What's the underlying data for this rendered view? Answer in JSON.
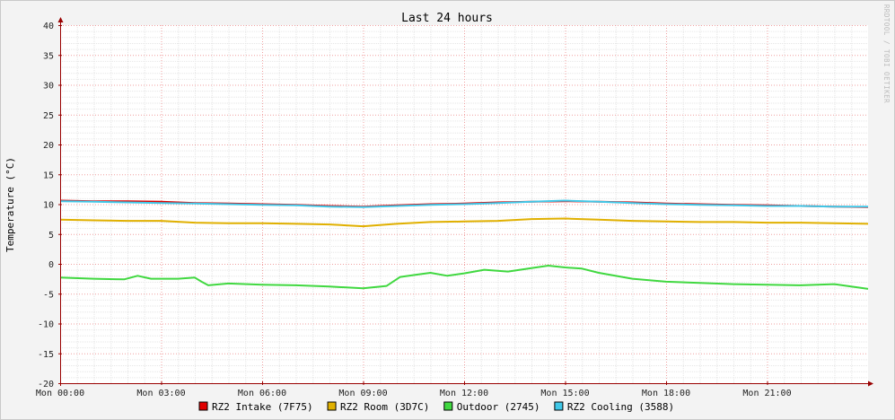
{
  "chart_data": {
    "type": "line",
    "title": "Last 24 hours",
    "ylabel": "Temperature (°C)",
    "xlabel": "",
    "watermark": "RRDTOOL / TOBI OETIKER",
    "ylim": [
      -20,
      40
    ],
    "yticks": [
      40,
      35,
      30,
      25,
      20,
      15,
      10,
      5,
      0,
      -5,
      -10,
      -15,
      -20
    ],
    "ytick_labels": [
      "40",
      "35",
      "30",
      "25",
      "20",
      "15",
      "10",
      "5",
      "0",
      "-5",
      "-10",
      "-15",
      "-20"
    ],
    "xlim_hours": [
      0,
      24
    ],
    "xticks_hours": [
      0,
      3,
      6,
      9,
      12,
      15,
      18,
      21
    ],
    "xtick_labels": [
      "Mon 00:00",
      "Mon 03:00",
      "Mon 06:00",
      "Mon 09:00",
      "Mon 12:00",
      "Mon 15:00",
      "Mon 18:00",
      "Mon 21:00"
    ],
    "grid": true,
    "legend_position": "bottom",
    "colors": {
      "background": "#f3f3f3",
      "canvas": "#ffffff",
      "grid_minor": "#e6e6e6",
      "grid_major": "#f0a0a0",
      "axis": "#990000"
    },
    "series": [
      {
        "name": "RZ2 Intake (7F75)",
        "color": "#e00000",
        "x_hours": [
          0,
          1,
          2,
          3,
          4,
          5,
          6,
          7,
          8,
          9,
          10,
          11,
          12,
          13,
          14,
          15,
          16,
          17,
          18,
          19,
          20,
          21,
          22,
          23,
          24
        ],
        "values": [
          10.6,
          10.5,
          10.5,
          10.4,
          10.2,
          10.1,
          10.0,
          9.9,
          9.7,
          9.6,
          9.8,
          10.0,
          10.1,
          10.3,
          10.4,
          10.5,
          10.4,
          10.3,
          10.1,
          10.0,
          9.9,
          9.8,
          9.7,
          9.6,
          9.5
        ]
      },
      {
        "name": "RZ2 Room (3D7C)",
        "color": "#e0b000",
        "x_hours": [
          0,
          1,
          2,
          3,
          4,
          5,
          6,
          7,
          8,
          9,
          10,
          11,
          12,
          13,
          14,
          15,
          16,
          17,
          18,
          19,
          20,
          21,
          22,
          23,
          24
        ],
        "values": [
          7.4,
          7.3,
          7.2,
          7.2,
          6.9,
          6.8,
          6.8,
          6.7,
          6.6,
          6.3,
          6.7,
          7.0,
          7.1,
          7.2,
          7.5,
          7.6,
          7.4,
          7.2,
          7.1,
          7.0,
          7.0,
          6.9,
          6.9,
          6.8,
          6.7
        ]
      },
      {
        "name": "Outdoor (2745)",
        "color": "#40d840",
        "x_hours": [
          0,
          1,
          1.9,
          2.3,
          2.7,
          3.5,
          4.0,
          4.2,
          4.4,
          5.0,
          6.0,
          7.0,
          8.0,
          9.0,
          9.7,
          10.1,
          10.6,
          11.0,
          11.5,
          12.0,
          12.6,
          13.3,
          14.0,
          14.5,
          15.0,
          15.5,
          16.0,
          17.0,
          18.0,
          19.0,
          20.0,
          21.0,
          22.0,
          23.0,
          24.0
        ],
        "values": [
          -2.3,
          -2.5,
          -2.6,
          -2.0,
          -2.5,
          -2.5,
          -2.3,
          -3.0,
          -3.6,
          -3.3,
          -3.5,
          -3.6,
          -3.8,
          -4.1,
          -3.7,
          -2.2,
          -1.8,
          -1.5,
          -2.0,
          -1.6,
          -1.0,
          -1.3,
          -0.7,
          -0.3,
          -0.6,
          -0.8,
          -1.5,
          -2.5,
          -3.0,
          -3.2,
          -3.4,
          -3.5,
          -3.6,
          -3.4,
          -4.2
        ]
      },
      {
        "name": "RZ2 Cooling (3588)",
        "color": "#40c8e8",
        "x_hours": [
          0,
          1,
          2,
          3,
          4,
          5,
          6,
          7,
          8,
          9,
          10,
          11,
          12,
          13,
          14,
          15,
          16,
          17,
          18,
          19,
          20,
          21,
          22,
          23,
          24
        ],
        "values": [
          10.5,
          10.4,
          10.3,
          10.2,
          10.1,
          10.0,
          9.9,
          9.8,
          9.6,
          9.5,
          9.7,
          9.9,
          10.0,
          10.2,
          10.4,
          10.6,
          10.4,
          10.2,
          10.0,
          9.9,
          9.8,
          9.7,
          9.7,
          9.6,
          9.6
        ]
      }
    ]
  }
}
